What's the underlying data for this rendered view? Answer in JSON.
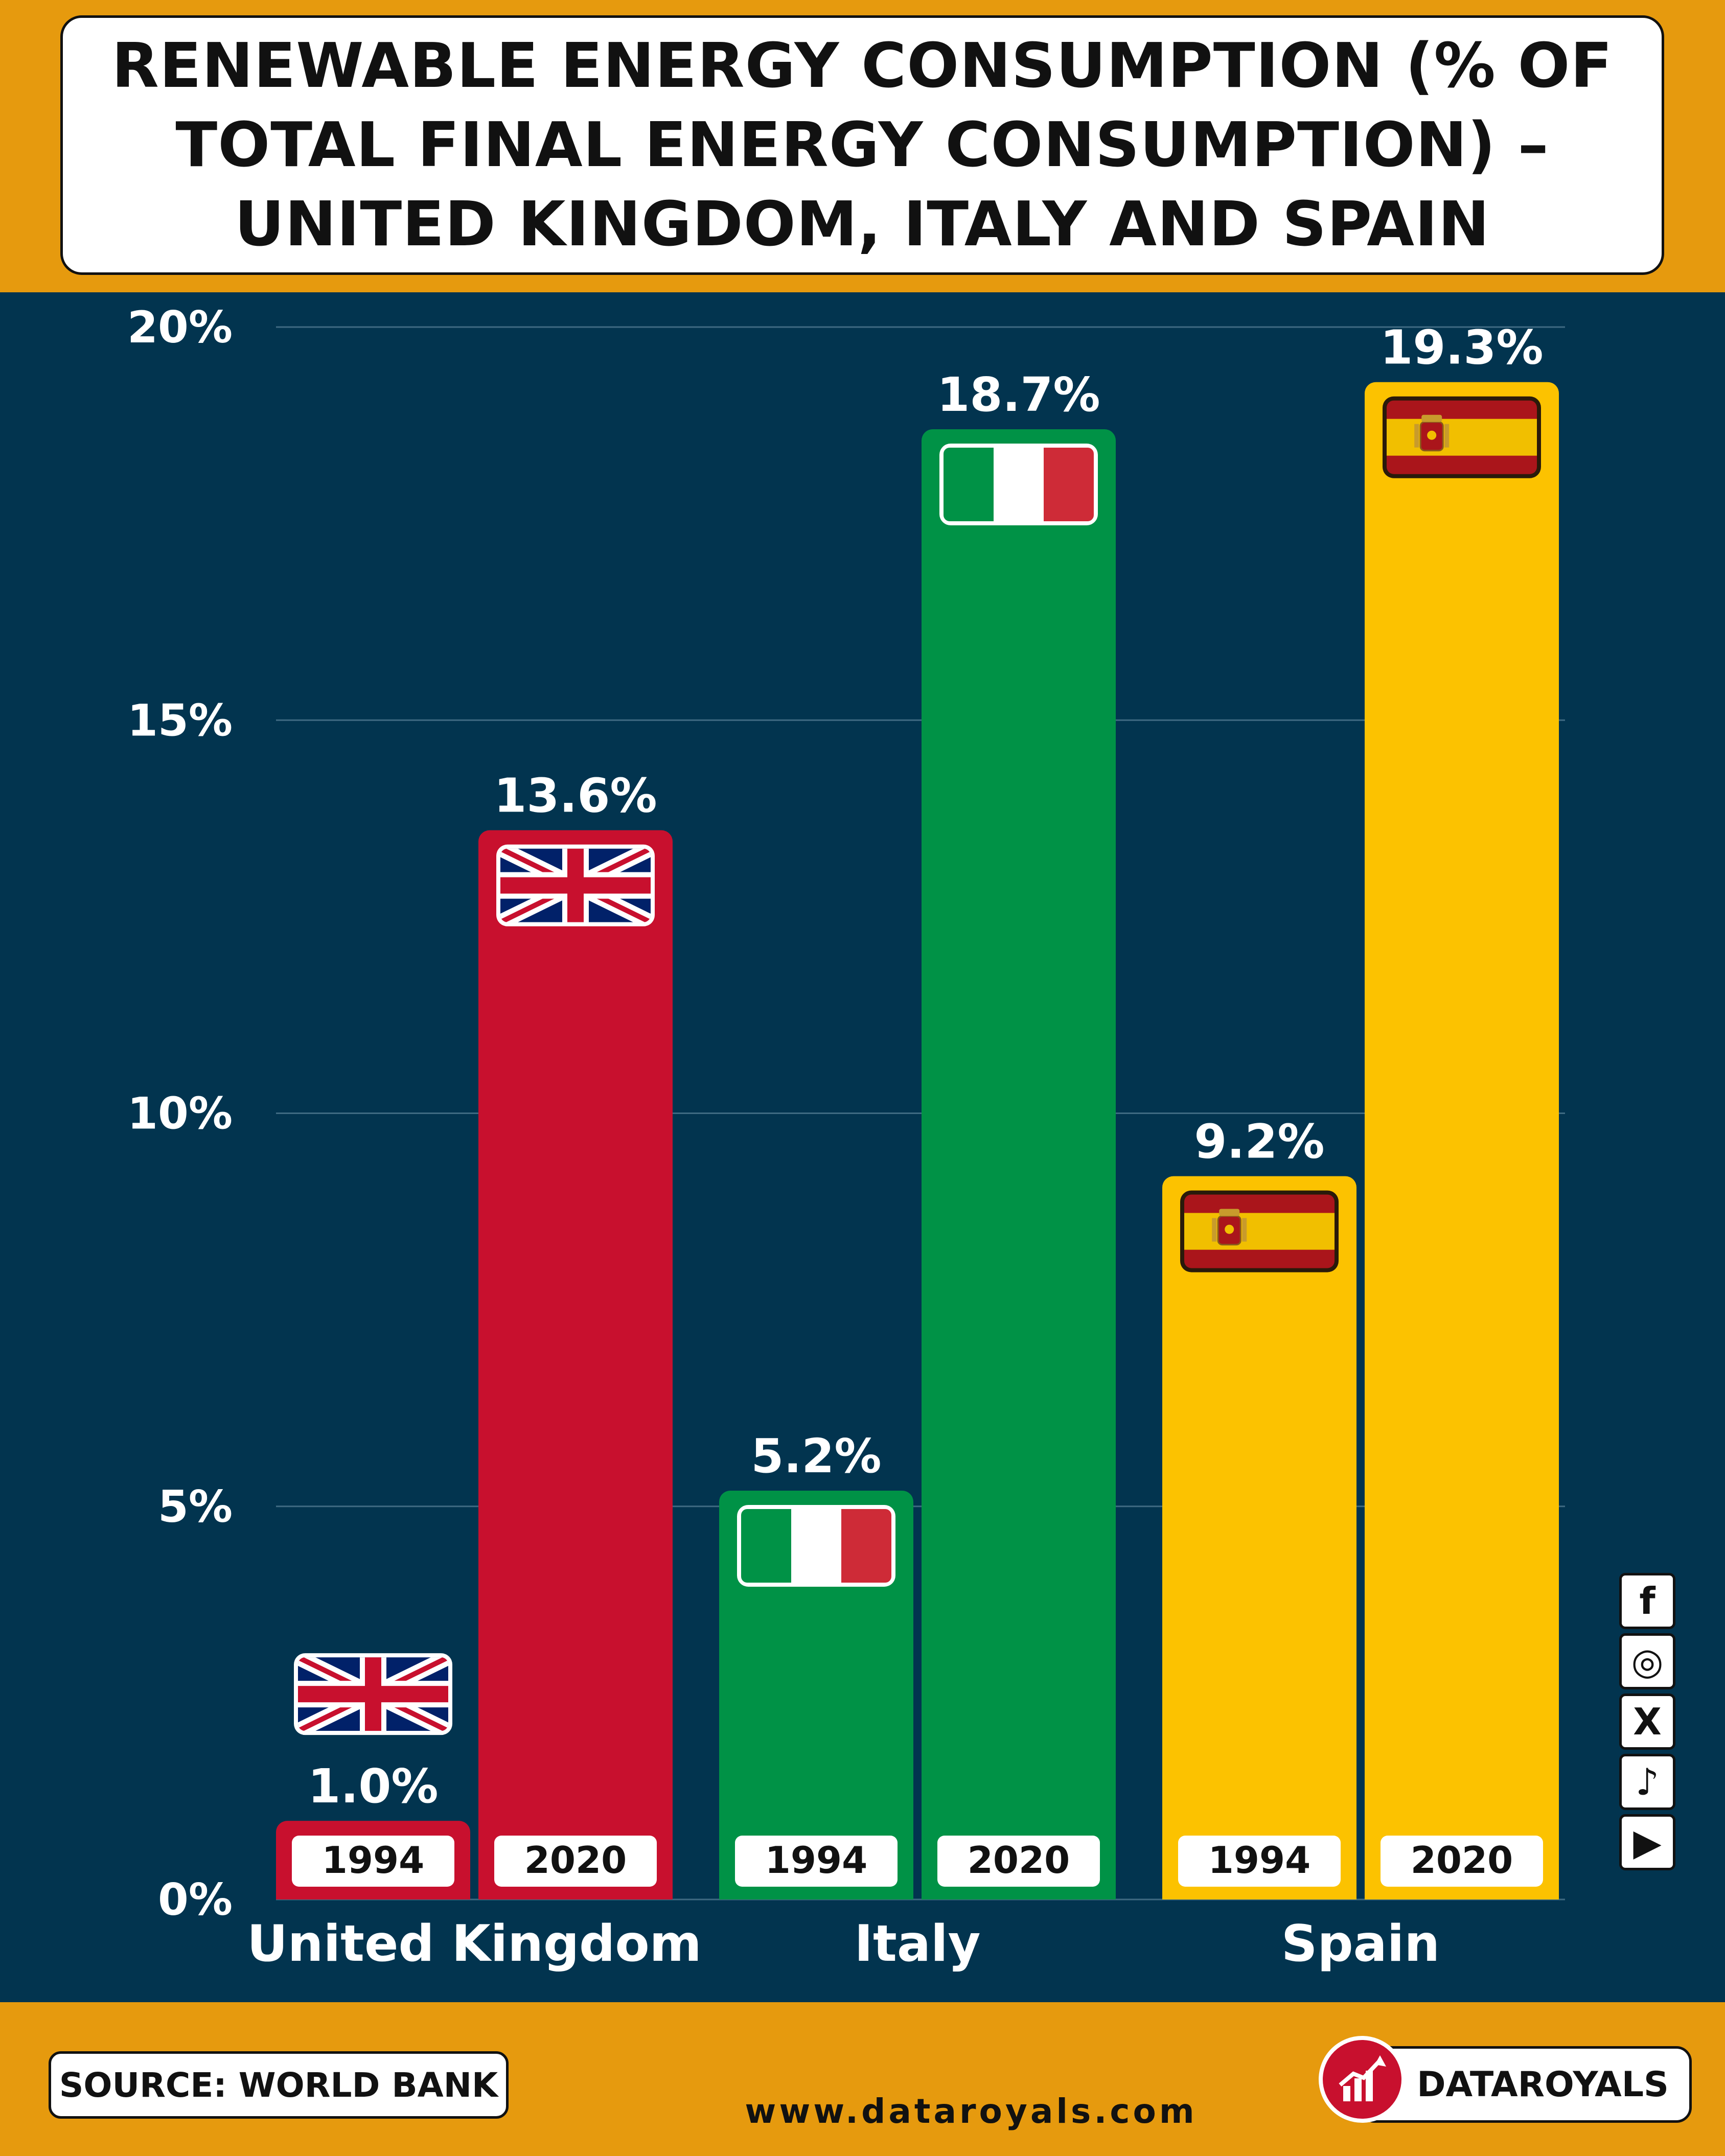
{
  "title": "RENEWABLE ENERGY CONSUMPTION (% OF TOTAL FINAL ENERGY CONSUMPTION) – UNITED KINGDOM, ITALY AND SPAIN",
  "footer": {
    "source": "SOURCE: WORLD BANK",
    "website": "www.dataroyals.com",
    "brand": "DATAROYALS"
  },
  "social_icons": [
    "facebook-icon",
    "instagram-icon",
    "x-icon",
    "tiktok-icon",
    "youtube-icon"
  ],
  "colors": {
    "background": "#02344F",
    "frame": "#E69A0E",
    "united_kingdom": "#C8102E",
    "italy": "#009246",
    "spain": "#FCC200"
  },
  "chart_data": {
    "type": "bar",
    "title": "RENEWABLE ENERGY CONSUMPTION (% OF TOTAL FINAL ENERGY CONSUMPTION) – UNITED KINGDOM, ITALY AND SPAIN",
    "categories": [
      "United Kingdom",
      "Italy",
      "Spain"
    ],
    "years": [
      "1994",
      "2020"
    ],
    "series": [
      {
        "values": [
          1.0,
          5.2,
          9.2
        ]
      },
      {
        "values": [
          13.6,
          18.7,
          19.3
        ]
      }
    ],
    "value_labels": [
      [
        "1.0%",
        "13.6%"
      ],
      [
        "5.2%",
        "18.7%"
      ],
      [
        "9.2%",
        "19.3%"
      ]
    ],
    "flags": [
      "uk-flag-icon",
      "italy-flag-icon",
      "spain-flag-icon"
    ],
    "ylim": [
      0,
      20
    ],
    "yticks": [
      0,
      5,
      10,
      15,
      20
    ],
    "ytick_labels": [
      "0%",
      "5%",
      "10%",
      "15%",
      "20%"
    ],
    "grid": true,
    "legend": "none"
  }
}
